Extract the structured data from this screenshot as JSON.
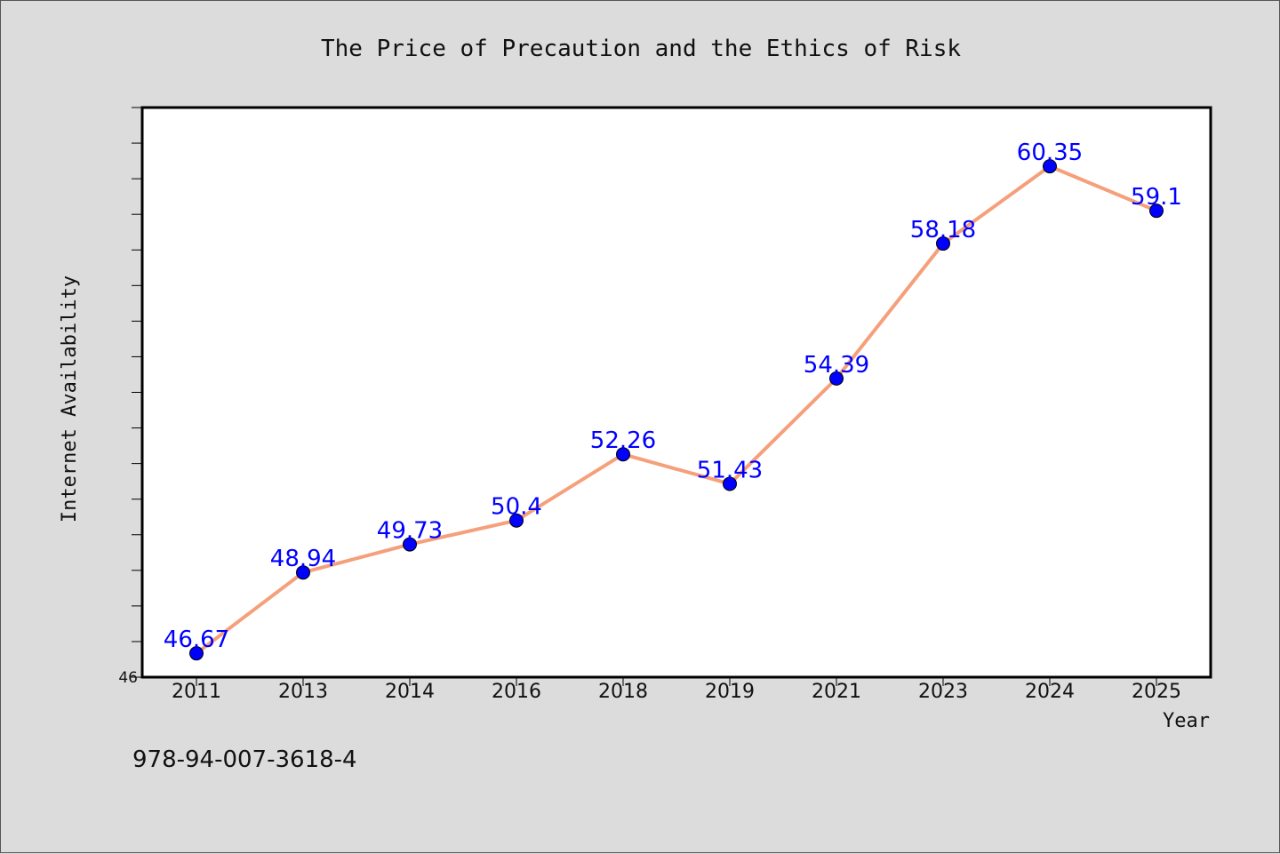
{
  "chart_data": {
    "type": "line",
    "title": "The Price of Precaution and the Ethics of Risk",
    "xlabel": "Year",
    "ylabel": "Internet Availability",
    "categories": [
      "2011",
      "2013",
      "2014",
      "2016",
      "2018",
      "2019",
      "2021",
      "2023",
      "2024",
      "2025"
    ],
    "series": [
      {
        "values": [
          46.67,
          48.94,
          49.73,
          50.4,
          52.26,
          51.43,
          54.39,
          58.18,
          60.35,
          59.1
        ],
        "data_labels": [
          "46.67",
          "48.94",
          "49.73",
          "50.4",
          "52.26",
          "51.43",
          "54.39",
          "58.18",
          "60.35",
          "59.1"
        ],
        "line_color": "#f5a07a",
        "marker_color": "#0000ff"
      }
    ],
    "ylim": [
      46,
      62
    ],
    "y_tick_labels": [
      "46"
    ],
    "y_minor_tick_step": 1,
    "grid": false,
    "legend": "none",
    "background_color": "#dcdcdc",
    "plot_background_color": "#ffffff"
  },
  "footnote": "978-94-007-3618-4"
}
